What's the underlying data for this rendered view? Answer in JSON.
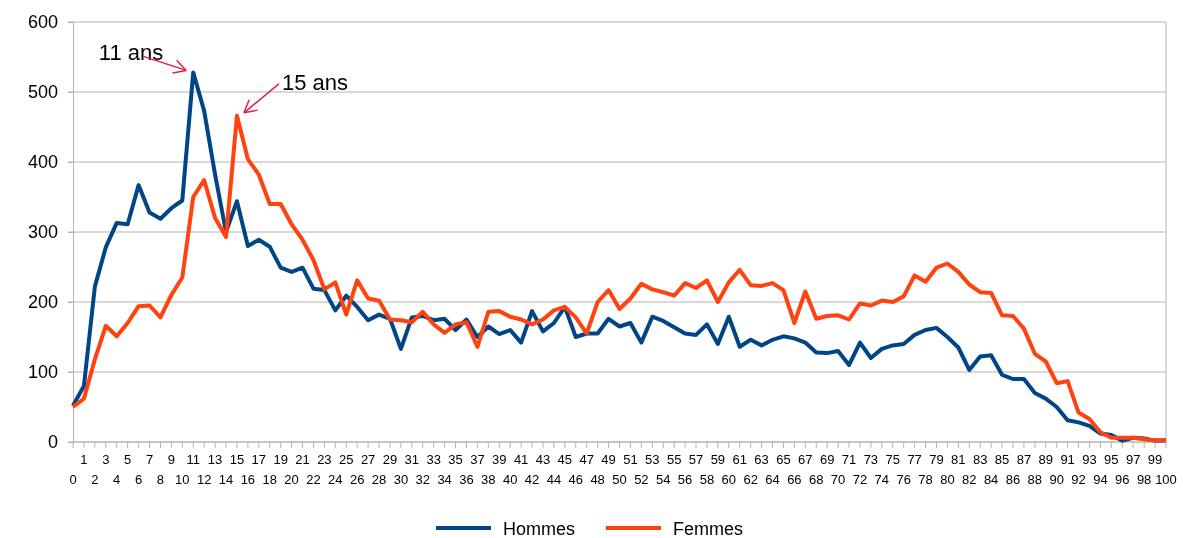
{
  "chart_data": {
    "type": "line",
    "categories": [
      "0",
      "1",
      "2",
      "3",
      "4",
      "5",
      "6",
      "7",
      "8",
      "9",
      "10",
      "11",
      "12",
      "13",
      "14",
      "15",
      "16",
      "17",
      "18",
      "19",
      "20",
      "21",
      "22",
      "23",
      "24",
      "25",
      "26",
      "27",
      "28",
      "29",
      "30",
      "31",
      "32",
      "33",
      "34",
      "35",
      "36",
      "37",
      "38",
      "39",
      "40",
      "41",
      "42",
      "43",
      "44",
      "45",
      "46",
      "47",
      "48",
      "49",
      "50",
      "51",
      "52",
      "53",
      "54",
      "55",
      "56",
      "57",
      "58",
      "59",
      "60",
      "61",
      "62",
      "63",
      "64",
      "65",
      "66",
      "67",
      "68",
      "69",
      "70",
      "71",
      "72",
      "73",
      "74",
      "75",
      "76",
      "77",
      "78",
      "79",
      "80",
      "81",
      "82",
      "83",
      "84",
      "85",
      "86",
      "87",
      "88",
      "89",
      "90",
      "91",
      "92",
      "93",
      "94",
      "95",
      "96",
      "97",
      "98",
      "99",
      "100"
    ],
    "series": [
      {
        "name": "Hommes",
        "color": "#004586",
        "values": [
          52,
          80,
          222,
          278,
          313,
          311,
          367,
          328,
          319,
          334,
          345,
          528,
          473,
          382,
          300,
          344,
          280,
          289,
          279,
          249,
          243,
          249,
          219,
          217,
          188,
          209,
          193,
          174,
          182,
          176,
          133,
          178,
          180,
          174,
          176,
          160,
          175,
          150,
          165,
          154,
          160,
          142,
          187,
          158,
          170,
          193,
          150,
          155,
          155,
          176,
          165,
          170,
          142,
          179,
          173,
          164,
          155,
          153,
          168,
          140,
          179,
          136,
          146,
          138,
          146,
          151,
          148,
          142,
          128,
          127,
          130,
          110,
          142,
          120,
          133,
          138,
          140,
          153,
          160,
          163,
          150,
          135,
          103,
          122,
          124,
          96,
          90,
          90,
          70,
          62,
          50,
          31,
          28,
          23,
          12,
          10,
          2,
          6,
          5,
          2,
          2
        ]
      },
      {
        "name": "Femmes",
        "color": "#ff420e",
        "values": [
          50,
          62,
          118,
          166,
          151,
          170,
          194,
          195,
          178,
          210,
          235,
          350,
          374,
          320,
          293,
          466,
          404,
          382,
          340,
          340,
          311,
          289,
          260,
          218,
          228,
          182,
          231,
          205,
          202,
          175,
          174,
          171,
          186,
          168,
          156,
          168,
          171,
          136,
          186,
          187,
          179,
          175,
          168,
          175,
          188,
          193,
          178,
          155,
          200,
          217,
          190,
          205,
          226,
          218,
          214,
          209,
          227,
          220,
          231,
          200,
          228,
          246,
          224,
          223,
          227,
          217,
          170,
          215,
          176,
          180,
          181,
          175,
          198,
          195,
          202,
          200,
          208,
          238,
          229,
          249,
          255,
          243,
          225,
          214,
          213,
          181,
          180,
          162,
          126,
          115,
          84,
          87,
          42,
          33,
          14,
          6,
          6,
          6,
          4,
          2,
          3
        ]
      }
    ],
    "ylim": [
      0,
      600
    ],
    "yticks": [
      0,
      100,
      200,
      300,
      400,
      500,
      600
    ],
    "grid": "y",
    "legend": "bottom",
    "marker": "none",
    "line_style": "solid",
    "annotations": [
      {
        "text": "11 ans",
        "x": "11",
        "y": 528
      },
      {
        "text": "15 ans",
        "x": "15",
        "y": 466
      }
    ]
  }
}
